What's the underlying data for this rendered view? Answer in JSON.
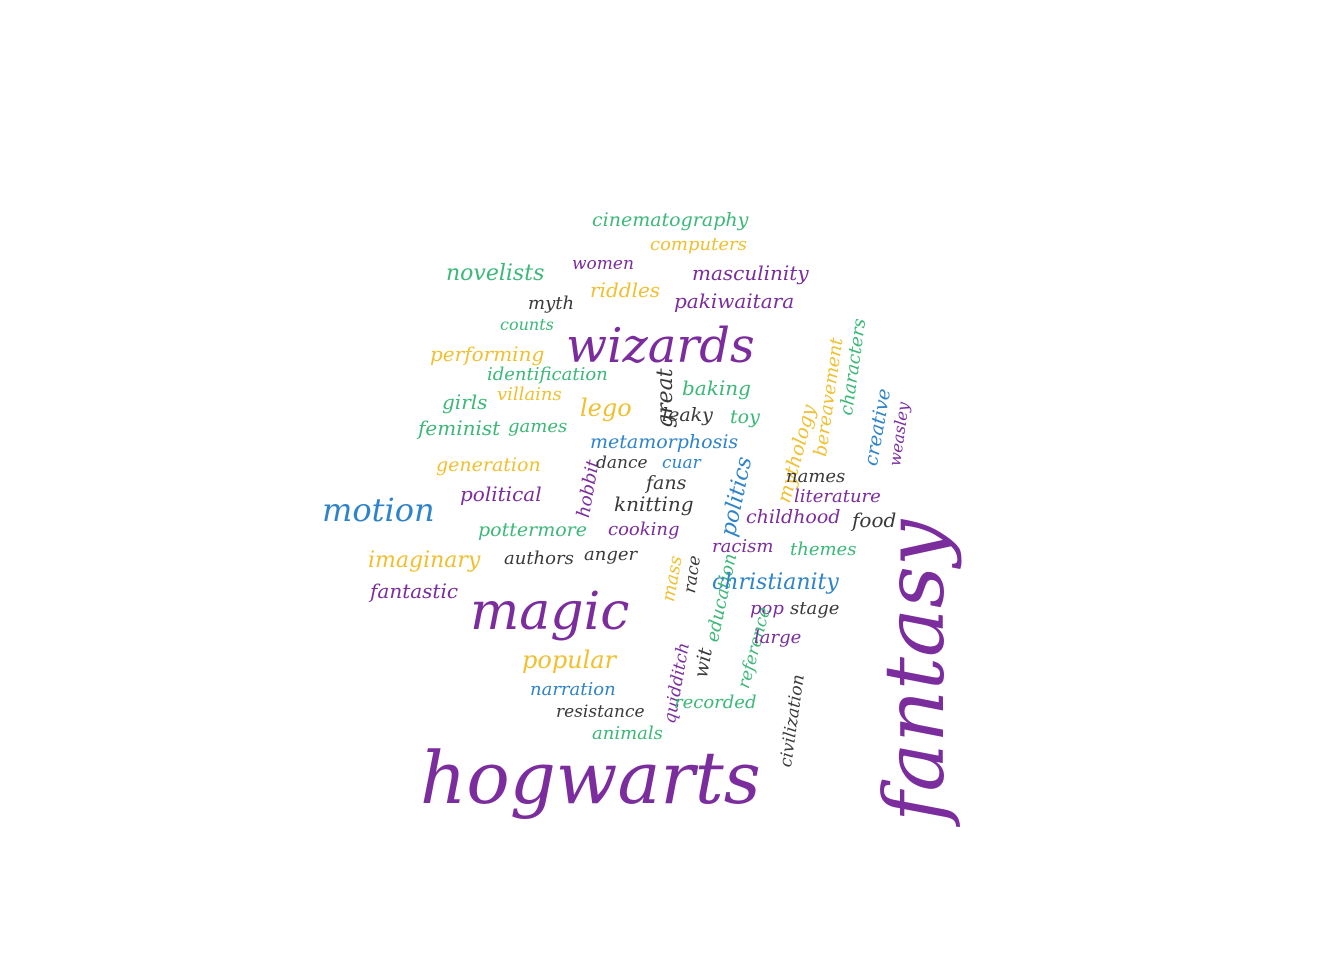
{
  "palette": {
    "purple": "#7b2d9e",
    "green": "#3cb878",
    "yellow": "#f0c030",
    "blue": "#2f84c9",
    "dark": "#3a3a3a"
  },
  "words": [
    {
      "id": "fantasy",
      "text": "fantasy",
      "color": "purple"
    },
    {
      "id": "hogwarts",
      "text": "hogwarts",
      "color": "purple"
    },
    {
      "id": "magic",
      "text": "magic",
      "color": "purple"
    },
    {
      "id": "wizards",
      "text": "wizards",
      "color": "purple"
    },
    {
      "id": "motion",
      "text": "motion",
      "color": "blue"
    },
    {
      "id": "cinematography",
      "text": "cinematography",
      "color": "green"
    },
    {
      "id": "computers",
      "text": "computers",
      "color": "yellow"
    },
    {
      "id": "novelists",
      "text": "novelists",
      "color": "green"
    },
    {
      "id": "women",
      "text": "women",
      "color": "purple"
    },
    {
      "id": "masculinity",
      "text": "masculinity",
      "color": "purple"
    },
    {
      "id": "riddles",
      "text": "riddles",
      "color": "yellow"
    },
    {
      "id": "myth",
      "text": "myth",
      "color": "dark"
    },
    {
      "id": "pakiwaitara",
      "text": "pakiwaitara",
      "color": "purple"
    },
    {
      "id": "counts",
      "text": "counts",
      "color": "green"
    },
    {
      "id": "performing",
      "text": "performing",
      "color": "yellow"
    },
    {
      "id": "identification",
      "text": "identification",
      "color": "green"
    },
    {
      "id": "baking",
      "text": "baking",
      "color": "green"
    },
    {
      "id": "great",
      "text": "great",
      "color": "dark"
    },
    {
      "id": "girls",
      "text": "girls",
      "color": "green"
    },
    {
      "id": "villains",
      "text": "villains",
      "color": "yellow"
    },
    {
      "id": "lego",
      "text": "lego",
      "color": "yellow"
    },
    {
      "id": "leaky",
      "text": "leaky",
      "color": "dark"
    },
    {
      "id": "toy",
      "text": "toy",
      "color": "green"
    },
    {
      "id": "feminist",
      "text": "feminist",
      "color": "green"
    },
    {
      "id": "games",
      "text": "games",
      "color": "green"
    },
    {
      "id": "metamorphosis",
      "text": "metamorphosis",
      "color": "blue"
    },
    {
      "id": "mythology",
      "text": "mythology",
      "color": "yellow"
    },
    {
      "id": "bereavement",
      "text": "bereavement",
      "color": "yellow"
    },
    {
      "id": "characters",
      "text": "characters",
      "color": "green"
    },
    {
      "id": "creative",
      "text": "creative",
      "color": "blue"
    },
    {
      "id": "weasley",
      "text": "weasley",
      "color": "purple"
    },
    {
      "id": "generation",
      "text": "generation",
      "color": "yellow"
    },
    {
      "id": "hobbit",
      "text": "hobbit",
      "color": "purple"
    },
    {
      "id": "dance",
      "text": "dance",
      "color": "dark"
    },
    {
      "id": "cuar",
      "text": "cuar",
      "color": "blue"
    },
    {
      "id": "fans",
      "text": "fans",
      "color": "dark"
    },
    {
      "id": "names",
      "text": "names",
      "color": "dark"
    },
    {
      "id": "political",
      "text": "political",
      "color": "purple"
    },
    {
      "id": "politics",
      "text": "politics",
      "color": "blue"
    },
    {
      "id": "literature",
      "text": "literature",
      "color": "purple"
    },
    {
      "id": "knitting",
      "text": "knitting",
      "color": "dark"
    },
    {
      "id": "childhood",
      "text": "childhood",
      "color": "purple"
    },
    {
      "id": "food",
      "text": "food",
      "color": "dark"
    },
    {
      "id": "pottermore",
      "text": "pottermore",
      "color": "green"
    },
    {
      "id": "cooking",
      "text": "cooking",
      "color": "purple"
    },
    {
      "id": "racism",
      "text": "racism",
      "color": "purple"
    },
    {
      "id": "themes",
      "text": "themes",
      "color": "green"
    },
    {
      "id": "imaginary",
      "text": "imaginary",
      "color": "yellow"
    },
    {
      "id": "authors",
      "text": "authors",
      "color": "dark"
    },
    {
      "id": "anger",
      "text": "anger",
      "color": "dark"
    },
    {
      "id": "mass",
      "text": "mass",
      "color": "yellow"
    },
    {
      "id": "race",
      "text": "race",
      "color": "dark"
    },
    {
      "id": "education",
      "text": "education",
      "color": "green"
    },
    {
      "id": "christianity",
      "text": "christianity",
      "color": "blue"
    },
    {
      "id": "fantastic",
      "text": "fantastic",
      "color": "purple"
    },
    {
      "id": "pop",
      "text": "pop",
      "color": "purple"
    },
    {
      "id": "stage",
      "text": "stage",
      "color": "dark"
    },
    {
      "id": "quidditch",
      "text": "quidditch",
      "color": "purple"
    },
    {
      "id": "wit",
      "text": "wit",
      "color": "dark"
    },
    {
      "id": "reference",
      "text": "reference",
      "color": "green"
    },
    {
      "id": "large",
      "text": "large",
      "color": "purple"
    },
    {
      "id": "popular",
      "text": "popular",
      "color": "yellow"
    },
    {
      "id": "civilization",
      "text": "civilization",
      "color": "dark"
    },
    {
      "id": "narration",
      "text": "narration",
      "color": "blue"
    },
    {
      "id": "recorded",
      "text": "recorded",
      "color": "green"
    },
    {
      "id": "resistance",
      "text": "resistance",
      "color": "dark"
    },
    {
      "id": "animals",
      "text": "animals",
      "color": "green"
    }
  ]
}
